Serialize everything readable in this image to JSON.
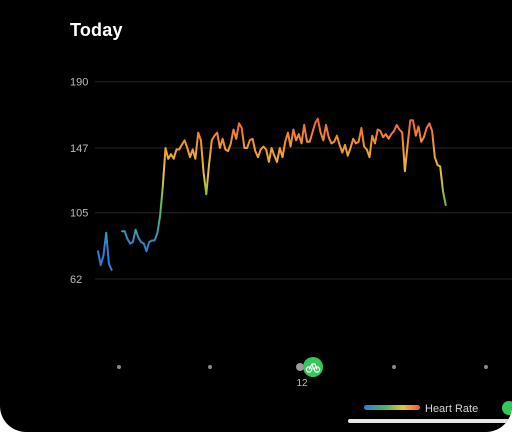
{
  "header": {
    "title": "Today"
  },
  "workout_marker": {
    "icon": "bicycle-icon",
    "label": "12",
    "color": "#34c759"
  },
  "legend": {
    "label": "Heart Rate",
    "gradient": [
      "#2f7fd8",
      "#52b75c",
      "#e7c23a",
      "#f05a3c"
    ]
  },
  "chart_data": {
    "type": "line",
    "title": "",
    "xlabel": "",
    "ylabel": "",
    "yticks": [
      62,
      105,
      147,
      190
    ],
    "ylim": [
      40,
      200
    ],
    "grid": true,
    "x_label_marker": "12",
    "series": [
      {
        "values": [
          [
            80,
            71,
            77,
            92,
            72,
            68
          ],
          [
            93,
            93,
            88,
            85,
            86,
            94,
            89,
            86,
            85,
            80,
            86,
            87,
            87,
            92,
            103,
            122,
            147,
            140,
            143,
            140,
            146,
            146,
            149,
            152,
            147,
            141,
            146,
            140,
            157,
            152,
            131,
            117,
            136,
            152,
            155,
            157,
            147,
            153,
            146,
            145,
            150,
            159,
            153,
            163,
            160,
            147,
            147,
            152,
            153,
            145,
            141,
            146,
            148,
            146,
            138,
            147,
            142,
            138,
            147,
            141,
            151,
            157,
            148,
            159,
            152,
            156,
            150,
            162,
            151,
            151,
            157,
            163,
            166,
            157,
            152,
            162,
            154,
            150,
            151,
            155,
            149,
            144,
            149,
            142,
            147,
            153,
            150,
            151,
            160,
            148,
            146,
            141,
            155,
            150,
            159,
            158,
            154,
            156,
            153,
            156,
            158,
            162,
            159,
            157,
            132,
            149,
            165,
            165,
            155,
            161,
            151,
            154,
            160,
            163,
            158,
            141,
            136,
            135,
            119,
            110
          ]
        ]
      }
    ]
  }
}
